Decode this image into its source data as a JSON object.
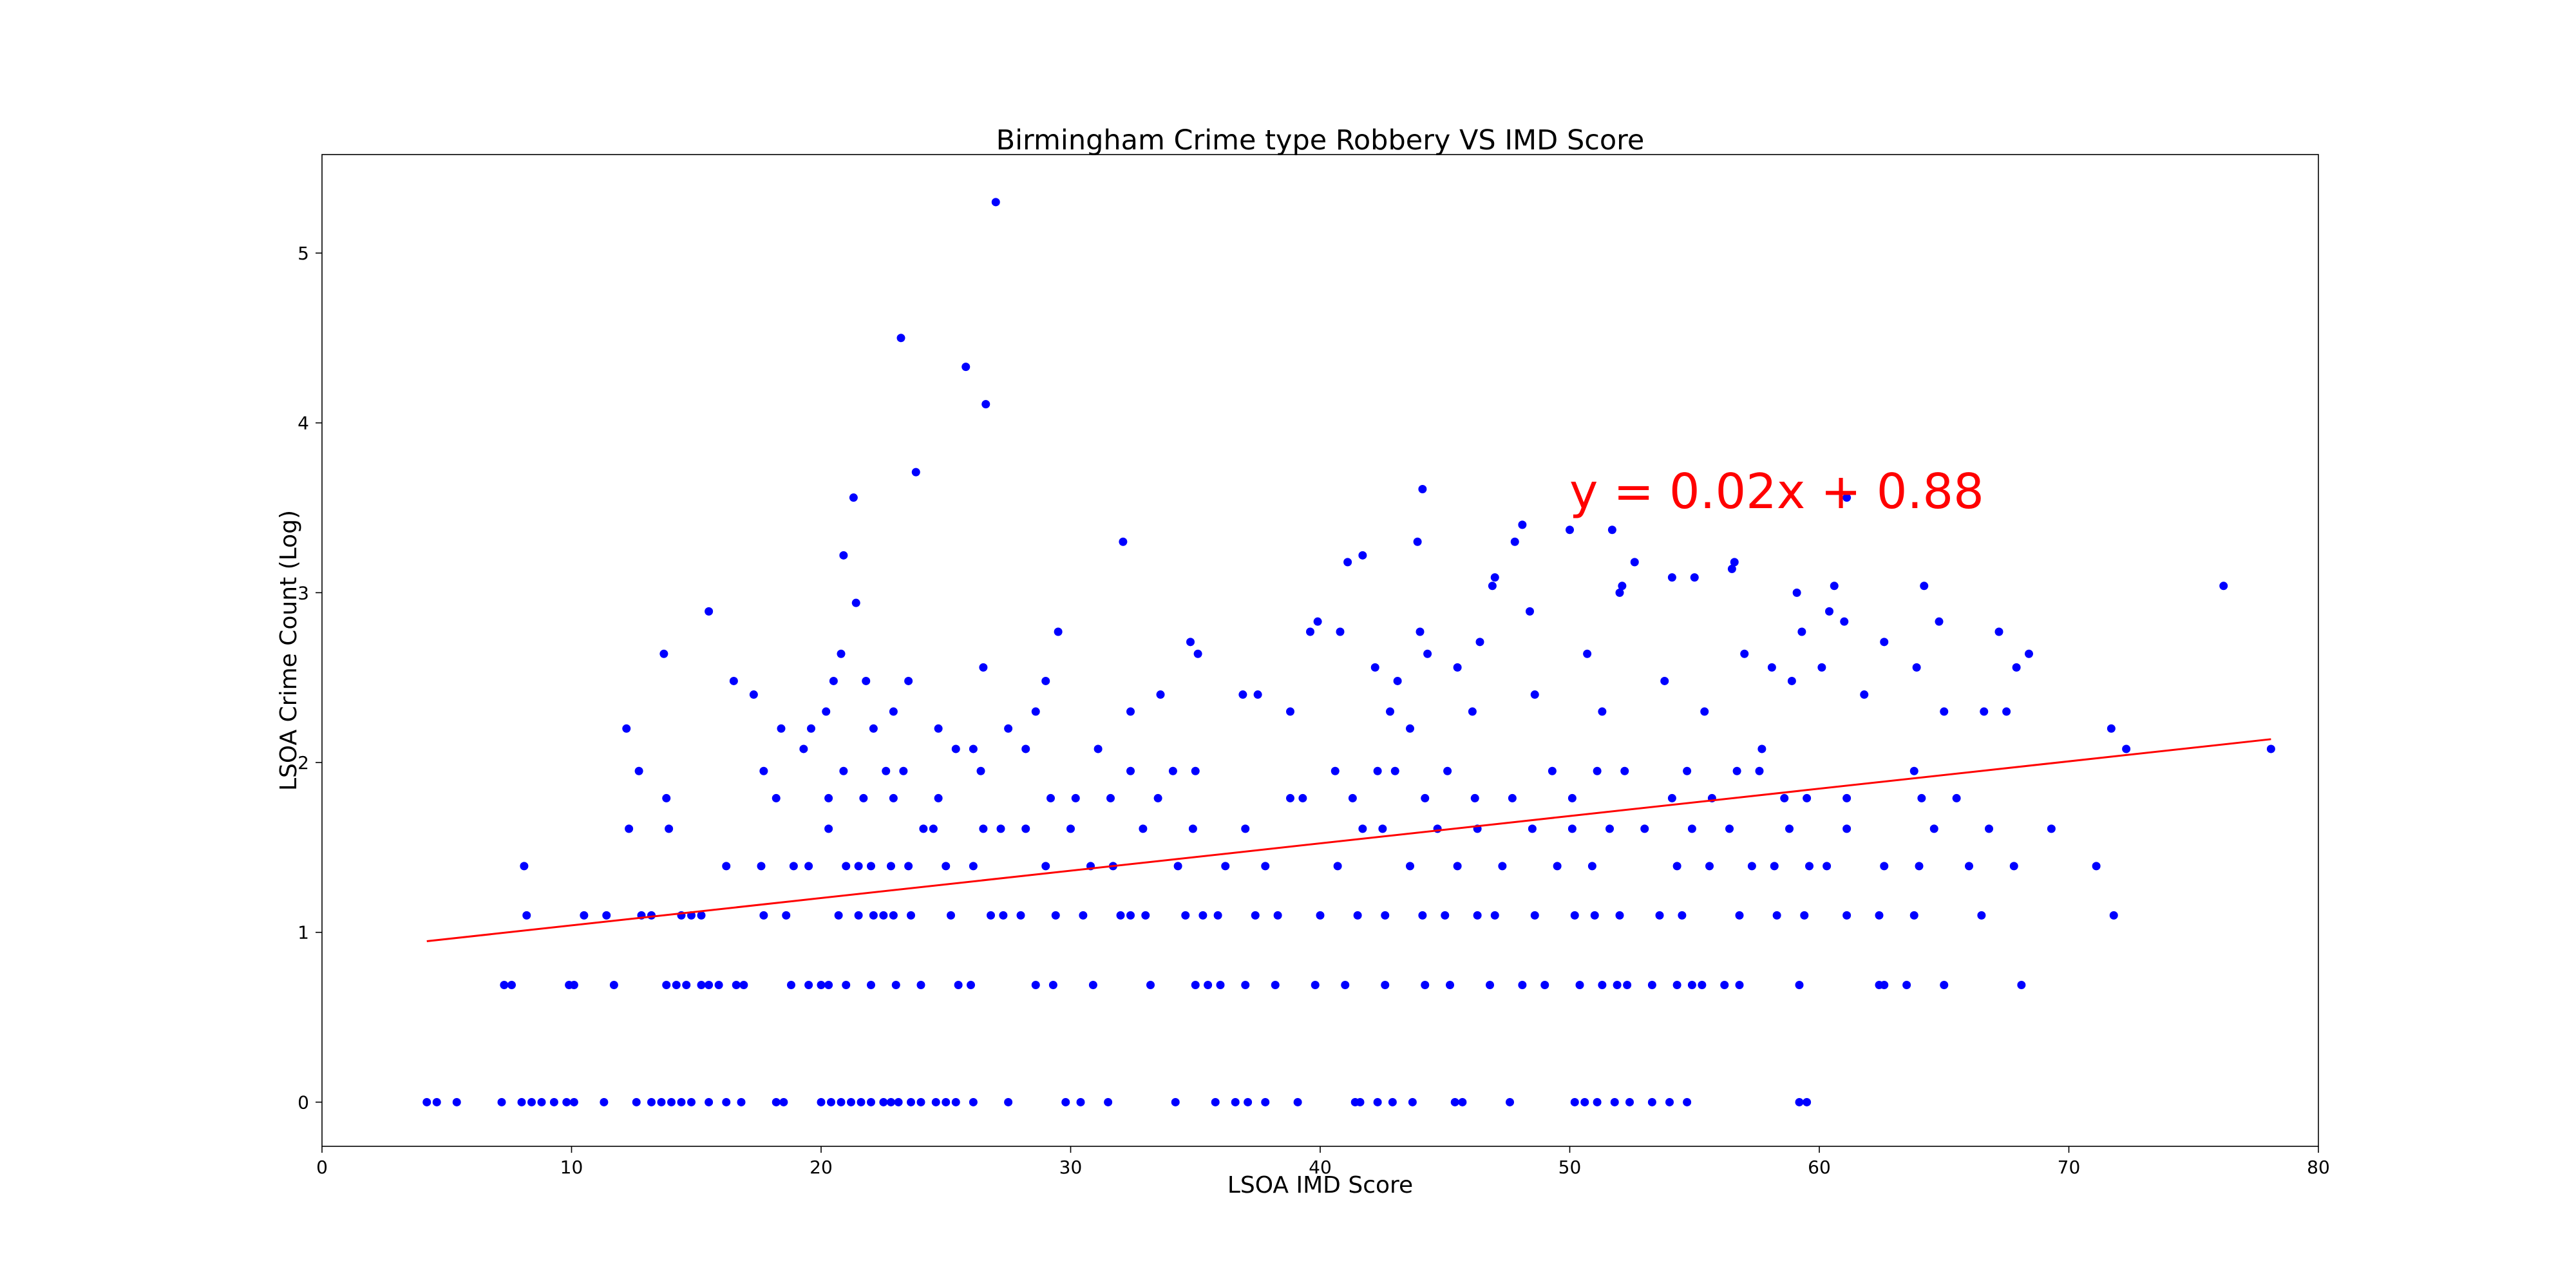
{
  "chart_data": {
    "type": "scatter",
    "title": "Birmingham Crime type Robbery VS IMD Score",
    "xlabel": "LSOA IMD Score",
    "ylabel": "LSOA Crime Count (Log)",
    "xlim": [
      0,
      80
    ],
    "ylim": [
      -0.26,
      5.58
    ],
    "x_ticks": [
      0,
      10,
      20,
      30,
      40,
      50,
      60,
      70,
      80
    ],
    "y_ticks": [
      0,
      1,
      2,
      3,
      4,
      5
    ],
    "grid": false,
    "point_color": "#0000ff",
    "line_color": "#ff0000",
    "equation_text": "y = 0.02x + 0.88",
    "trendline": {
      "slope": 0.0161,
      "intercept": 0.88,
      "x_range": [
        4.2,
        78.1
      ]
    },
    "points": [
      [
        4.2,
        0
      ],
      [
        4.6,
        0
      ],
      [
        5.4,
        0
      ],
      [
        7.2,
        0
      ],
      [
        8.0,
        0
      ],
      [
        8.4,
        0
      ],
      [
        8.8,
        0
      ],
      [
        9.3,
        0
      ],
      [
        9.8,
        0
      ],
      [
        10.1,
        0
      ],
      [
        11.3,
        0
      ],
      [
        12.6,
        0
      ],
      [
        13.2,
        0
      ],
      [
        13.6,
        0
      ],
      [
        14.0,
        0
      ],
      [
        14.4,
        0
      ],
      [
        14.8,
        0
      ],
      [
        15.5,
        0
      ],
      [
        16.2,
        0
      ],
      [
        16.8,
        0
      ],
      [
        18.2,
        0
      ],
      [
        18.5,
        0
      ],
      [
        20.0,
        0
      ],
      [
        20.4,
        0
      ],
      [
        20.8,
        0
      ],
      [
        21.2,
        0
      ],
      [
        21.6,
        0
      ],
      [
        22.0,
        0
      ],
      [
        22.5,
        0
      ],
      [
        22.8,
        0
      ],
      [
        23.1,
        0
      ],
      [
        23.6,
        0
      ],
      [
        24.0,
        0
      ],
      [
        24.6,
        0
      ],
      [
        25.0,
        0
      ],
      [
        25.4,
        0
      ],
      [
        26.1,
        0
      ],
      [
        27.5,
        0
      ],
      [
        29.8,
        0
      ],
      [
        30.4,
        0
      ],
      [
        31.5,
        0
      ],
      [
        34.2,
        0
      ],
      [
        35.8,
        0
      ],
      [
        36.6,
        0
      ],
      [
        37.1,
        0
      ],
      [
        37.8,
        0
      ],
      [
        39.1,
        0
      ],
      [
        41.4,
        0
      ],
      [
        41.6,
        0
      ],
      [
        42.3,
        0
      ],
      [
        42.9,
        0
      ],
      [
        43.7,
        0
      ],
      [
        45.4,
        0
      ],
      [
        45.7,
        0
      ],
      [
        47.6,
        0
      ],
      [
        50.2,
        0
      ],
      [
        50.6,
        0
      ],
      [
        51.1,
        0
      ],
      [
        51.8,
        0
      ],
      [
        52.4,
        0
      ],
      [
        53.3,
        0
      ],
      [
        54.0,
        0
      ],
      [
        54.7,
        0
      ],
      [
        59.2,
        0
      ],
      [
        59.5,
        0
      ],
      [
        7.3,
        0.69
      ],
      [
        7.6,
        0.69
      ],
      [
        9.9,
        0.69
      ],
      [
        10.1,
        0.69
      ],
      [
        11.7,
        0.69
      ],
      [
        13.8,
        0.69
      ],
      [
        14.2,
        0.69
      ],
      [
        14.6,
        0.69
      ],
      [
        15.2,
        0.69
      ],
      [
        15.5,
        0.69
      ],
      [
        15.9,
        0.69
      ],
      [
        16.6,
        0.69
      ],
      [
        16.9,
        0.69
      ],
      [
        18.8,
        0.69
      ],
      [
        19.5,
        0.69
      ],
      [
        20.0,
        0.69
      ],
      [
        20.3,
        0.69
      ],
      [
        21.0,
        0.69
      ],
      [
        22.0,
        0.69
      ],
      [
        23.0,
        0.69
      ],
      [
        24.0,
        0.69
      ],
      [
        25.5,
        0.69
      ],
      [
        26.0,
        0.69
      ],
      [
        28.6,
        0.69
      ],
      [
        29.3,
        0.69
      ],
      [
        30.9,
        0.69
      ],
      [
        33.2,
        0.69
      ],
      [
        35.0,
        0.69
      ],
      [
        35.5,
        0.69
      ],
      [
        36.0,
        0.69
      ],
      [
        37.0,
        0.69
      ],
      [
        38.2,
        0.69
      ],
      [
        39.8,
        0.69
      ],
      [
        41.0,
        0.69
      ],
      [
        42.6,
        0.69
      ],
      [
        44.2,
        0.69
      ],
      [
        45.2,
        0.69
      ],
      [
        46.8,
        0.69
      ],
      [
        48.1,
        0.69
      ],
      [
        49.0,
        0.69
      ],
      [
        50.4,
        0.69
      ],
      [
        51.3,
        0.69
      ],
      [
        51.9,
        0.69
      ],
      [
        52.3,
        0.69
      ],
      [
        53.3,
        0.69
      ],
      [
        54.3,
        0.69
      ],
      [
        54.9,
        0.69
      ],
      [
        55.3,
        0.69
      ],
      [
        56.2,
        0.69
      ],
      [
        56.8,
        0.69
      ],
      [
        59.2,
        0.69
      ],
      [
        62.4,
        0.69
      ],
      [
        62.6,
        0.69
      ],
      [
        63.5,
        0.69
      ],
      [
        65.0,
        0.69
      ],
      [
        68.1,
        0.69
      ],
      [
        8.2,
        1.1
      ],
      [
        10.5,
        1.1
      ],
      [
        11.4,
        1.1
      ],
      [
        12.8,
        1.1
      ],
      [
        13.2,
        1.1
      ],
      [
        14.4,
        1.1
      ],
      [
        14.8,
        1.1
      ],
      [
        15.2,
        1.1
      ],
      [
        17.7,
        1.1
      ],
      [
        18.6,
        1.1
      ],
      [
        20.7,
        1.1
      ],
      [
        21.5,
        1.1
      ],
      [
        22.1,
        1.1
      ],
      [
        22.5,
        1.1
      ],
      [
        22.9,
        1.1
      ],
      [
        23.6,
        1.1
      ],
      [
        25.2,
        1.1
      ],
      [
        26.8,
        1.1
      ],
      [
        27.3,
        1.1
      ],
      [
        28.0,
        1.1
      ],
      [
        29.4,
        1.1
      ],
      [
        30.5,
        1.1
      ],
      [
        32.0,
        1.1
      ],
      [
        32.4,
        1.1
      ],
      [
        33.0,
        1.1
      ],
      [
        34.6,
        1.1
      ],
      [
        35.3,
        1.1
      ],
      [
        35.9,
        1.1
      ],
      [
        37.4,
        1.1
      ],
      [
        38.3,
        1.1
      ],
      [
        40.0,
        1.1
      ],
      [
        41.5,
        1.1
      ],
      [
        42.6,
        1.1
      ],
      [
        44.1,
        1.1
      ],
      [
        45.0,
        1.1
      ],
      [
        46.3,
        1.1
      ],
      [
        47.0,
        1.1
      ],
      [
        48.6,
        1.1
      ],
      [
        50.2,
        1.1
      ],
      [
        51.0,
        1.1
      ],
      [
        52.0,
        1.1
      ],
      [
        53.6,
        1.1
      ],
      [
        54.5,
        1.1
      ],
      [
        56.8,
        1.1
      ],
      [
        58.3,
        1.1
      ],
      [
        59.4,
        1.1
      ],
      [
        61.1,
        1.1
      ],
      [
        62.4,
        1.1
      ],
      [
        63.8,
        1.1
      ],
      [
        66.5,
        1.1
      ],
      [
        71.8,
        1.1
      ],
      [
        8.1,
        1.39
      ],
      [
        12.3,
        1.61
      ],
      [
        13.9,
        1.61
      ],
      [
        16.2,
        1.39
      ],
      [
        17.6,
        1.39
      ],
      [
        18.9,
        1.39
      ],
      [
        19.5,
        1.39
      ],
      [
        20.3,
        1.61
      ],
      [
        21.0,
        1.39
      ],
      [
        21.5,
        1.39
      ],
      [
        22.0,
        1.39
      ],
      [
        22.8,
        1.39
      ],
      [
        23.5,
        1.39
      ],
      [
        24.1,
        1.61
      ],
      [
        24.5,
        1.61
      ],
      [
        25.0,
        1.39
      ],
      [
        26.1,
        1.39
      ],
      [
        26.5,
        1.61
      ],
      [
        27.2,
        1.61
      ],
      [
        28.2,
        1.61
      ],
      [
        29.0,
        1.39
      ],
      [
        30.0,
        1.61
      ],
      [
        30.8,
        1.39
      ],
      [
        31.7,
        1.39
      ],
      [
        32.9,
        1.61
      ],
      [
        34.3,
        1.39
      ],
      [
        34.9,
        1.61
      ],
      [
        36.2,
        1.39
      ],
      [
        37.0,
        1.61
      ],
      [
        37.8,
        1.39
      ],
      [
        40.7,
        1.39
      ],
      [
        41.7,
        1.61
      ],
      [
        42.5,
        1.61
      ],
      [
        43.6,
        1.39
      ],
      [
        44.7,
        1.61
      ],
      [
        45.5,
        1.39
      ],
      [
        46.3,
        1.61
      ],
      [
        47.3,
        1.39
      ],
      [
        48.5,
        1.61
      ],
      [
        49.5,
        1.39
      ],
      [
        50.1,
        1.61
      ],
      [
        50.9,
        1.39
      ],
      [
        51.6,
        1.61
      ],
      [
        53.0,
        1.61
      ],
      [
        54.3,
        1.39
      ],
      [
        54.9,
        1.61
      ],
      [
        55.6,
        1.39
      ],
      [
        56.4,
        1.61
      ],
      [
        57.3,
        1.39
      ],
      [
        58.2,
        1.39
      ],
      [
        58.8,
        1.61
      ],
      [
        59.6,
        1.39
      ],
      [
        60.3,
        1.39
      ],
      [
        61.1,
        1.61
      ],
      [
        62.6,
        1.39
      ],
      [
        64.0,
        1.39
      ],
      [
        64.6,
        1.61
      ],
      [
        66.0,
        1.39
      ],
      [
        66.8,
        1.61
      ],
      [
        67.8,
        1.39
      ],
      [
        69.3,
        1.61
      ],
      [
        71.1,
        1.39
      ],
      [
        12.7,
        1.95
      ],
      [
        13.8,
        1.79
      ],
      [
        17.7,
        1.95
      ],
      [
        18.2,
        1.79
      ],
      [
        19.3,
        2.08
      ],
      [
        20.3,
        1.79
      ],
      [
        20.9,
        1.95
      ],
      [
        21.7,
        1.79
      ],
      [
        22.6,
        1.95
      ],
      [
        22.9,
        1.79
      ],
      [
        23.3,
        1.95
      ],
      [
        24.7,
        1.79
      ],
      [
        25.4,
        2.08
      ],
      [
        26.4,
        1.95
      ],
      [
        28.2,
        2.08
      ],
      [
        29.2,
        1.79
      ],
      [
        30.2,
        1.79
      ],
      [
        31.6,
        1.79
      ],
      [
        32.4,
        1.95
      ],
      [
        33.5,
        1.79
      ],
      [
        34.1,
        1.95
      ],
      [
        35.0,
        1.95
      ],
      [
        38.8,
        1.79
      ],
      [
        39.3,
        1.79
      ],
      [
        40.6,
        1.95
      ],
      [
        41.3,
        1.79
      ],
      [
        42.3,
        1.95
      ],
      [
        43.0,
        1.95
      ],
      [
        44.2,
        1.79
      ],
      [
        45.1,
        1.95
      ],
      [
        46.2,
        1.79
      ],
      [
        47.7,
        1.79
      ],
      [
        49.3,
        1.95
      ],
      [
        50.1,
        1.79
      ],
      [
        51.1,
        1.95
      ],
      [
        52.2,
        1.95
      ],
      [
        54.1,
        1.79
      ],
      [
        54.7,
        1.95
      ],
      [
        55.7,
        1.79
      ],
      [
        56.7,
        1.95
      ],
      [
        57.6,
        1.95
      ],
      [
        58.6,
        1.79
      ],
      [
        59.5,
        1.79
      ],
      [
        61.1,
        1.79
      ],
      [
        63.8,
        1.95
      ],
      [
        64.1,
        1.79
      ],
      [
        65.5,
        1.79
      ],
      [
        12.2,
        2.2
      ],
      [
        15.5,
        2.89
      ],
      [
        13.7,
        2.64
      ],
      [
        16.5,
        2.48
      ],
      [
        17.3,
        2.4
      ],
      [
        18.4,
        2.2
      ],
      [
        19.6,
        2.2
      ],
      [
        20.2,
        2.3
      ],
      [
        20.5,
        2.48
      ],
      [
        20.8,
        2.64
      ],
      [
        20.9,
        3.22
      ],
      [
        21.3,
        3.56
      ],
      [
        21.4,
        2.94
      ],
      [
        21.8,
        2.48
      ],
      [
        22.1,
        2.2
      ],
      [
        22.9,
        2.3
      ],
      [
        23.2,
        4.5
      ],
      [
        23.5,
        2.48
      ],
      [
        23.8,
        3.71
      ],
      [
        24.7,
        2.2
      ],
      [
        25.8,
        4.33
      ],
      [
        26.1,
        2.08
      ],
      [
        26.5,
        2.56
      ],
      [
        26.6,
        4.11
      ],
      [
        27.0,
        5.3
      ],
      [
        27.5,
        2.2
      ],
      [
        28.6,
        2.3
      ],
      [
        29.0,
        2.48
      ],
      [
        29.5,
        2.77
      ],
      [
        31.1,
        2.08
      ],
      [
        32.1,
        3.3
      ],
      [
        32.4,
        2.3
      ],
      [
        33.6,
        2.4
      ],
      [
        34.8,
        2.71
      ],
      [
        35.1,
        2.64
      ],
      [
        36.9,
        2.4
      ],
      [
        37.5,
        2.4
      ],
      [
        38.8,
        2.3
      ],
      [
        39.6,
        2.77
      ],
      [
        39.9,
        2.83
      ],
      [
        40.8,
        2.77
      ],
      [
        41.1,
        3.18
      ],
      [
        41.7,
        3.22
      ],
      [
        42.2,
        2.56
      ],
      [
        42.8,
        2.3
      ],
      [
        43.1,
        2.48
      ],
      [
        43.6,
        2.2
      ],
      [
        43.9,
        3.3
      ],
      [
        44.0,
        2.77
      ],
      [
        44.1,
        3.61
      ],
      [
        44.3,
        2.64
      ],
      [
        45.5,
        2.56
      ],
      [
        46.1,
        2.3
      ],
      [
        46.4,
        2.71
      ],
      [
        46.9,
        3.04
      ],
      [
        47.0,
        3.09
      ],
      [
        47.8,
        3.3
      ],
      [
        48.1,
        3.4
      ],
      [
        48.4,
        2.89
      ],
      [
        48.6,
        2.4
      ],
      [
        50.0,
        3.37
      ],
      [
        50.7,
        2.64
      ],
      [
        51.3,
        2.3
      ],
      [
        51.7,
        3.37
      ],
      [
        52.0,
        3.0
      ],
      [
        52.1,
        3.04
      ],
      [
        52.6,
        3.18
      ],
      [
        53.8,
        2.48
      ],
      [
        54.1,
        3.09
      ],
      [
        55.0,
        3.09
      ],
      [
        55.4,
        2.3
      ],
      [
        56.5,
        3.14
      ],
      [
        56.6,
        3.18
      ],
      [
        57.0,
        2.64
      ],
      [
        57.7,
        2.08
      ],
      [
        58.1,
        2.56
      ],
      [
        58.9,
        2.48
      ],
      [
        59.1,
        3.0
      ],
      [
        59.3,
        2.77
      ],
      [
        60.1,
        2.56
      ],
      [
        60.4,
        2.89
      ],
      [
        60.6,
        3.04
      ],
      [
        61.0,
        2.83
      ],
      [
        61.1,
        3.56
      ],
      [
        61.8,
        2.4
      ],
      [
        62.6,
        2.71
      ],
      [
        63.9,
        2.56
      ],
      [
        64.2,
        3.04
      ],
      [
        64.8,
        2.83
      ],
      [
        65.0,
        2.3
      ],
      [
        66.6,
        2.3
      ],
      [
        67.2,
        2.77
      ],
      [
        67.5,
        2.3
      ],
      [
        67.9,
        2.56
      ],
      [
        68.4,
        2.64
      ],
      [
        71.7,
        2.2
      ],
      [
        72.3,
        2.08
      ],
      [
        76.2,
        3.04
      ],
      [
        78.1,
        2.08
      ]
    ]
  }
}
